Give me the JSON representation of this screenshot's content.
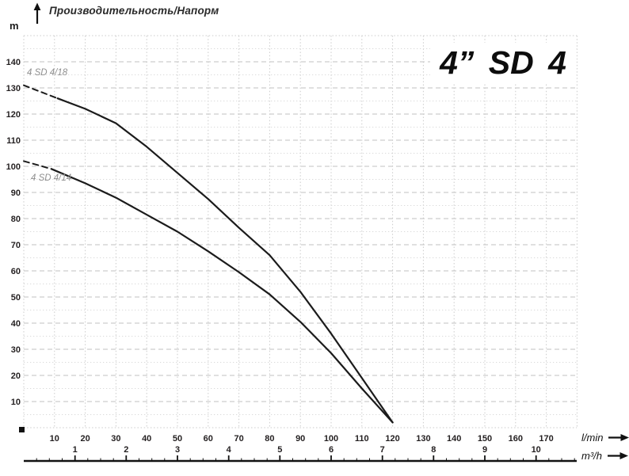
{
  "header": {
    "axis_title": "Производительность/Напорм",
    "y_unit": "m"
  },
  "title": "4” SD 4",
  "axes": {
    "y": {
      "ticks": [
        10,
        20,
        30,
        40,
        50,
        60,
        70,
        80,
        90,
        100,
        110,
        120,
        130,
        140
      ]
    },
    "lmin": {
      "ticks": [
        10,
        20,
        30,
        40,
        50,
        60,
        70,
        80,
        90,
        100,
        110,
        120,
        130,
        140,
        150,
        160,
        170
      ],
      "unit": "l/min"
    },
    "m3h": {
      "ticks": [
        1,
        2,
        3,
        4,
        5,
        6,
        7,
        8,
        9,
        10
      ],
      "unit": "m³/h",
      "minor_step": 0.25
    }
  },
  "chart_data": {
    "type": "line",
    "title": "4” SD 4",
    "ylabel": "Производительность/Напорм (m)",
    "xlabel": "l/min (primary) and m³/h (secondary)",
    "ylim": [
      0,
      150
    ],
    "xlim_lmin": [
      0,
      180
    ],
    "grid": {
      "x_step": 10,
      "y_major_step": 10,
      "y_minor_step": 5,
      "style": "dashed/dotted gray"
    },
    "legend_position": "labels near curve start",
    "series": [
      {
        "name": "4 SD 4/18",
        "dashed_lead": [
          [
            0,
            131
          ],
          [
            11,
            126
          ]
        ],
        "points": [
          [
            11,
            126
          ],
          [
            20,
            122
          ],
          [
            30,
            116.5
          ],
          [
            40,
            107.5
          ],
          [
            50,
            97.5
          ],
          [
            60,
            87.5
          ],
          [
            70,
            76.5
          ],
          [
            80,
            66
          ],
          [
            90,
            52
          ],
          [
            100,
            36
          ],
          [
            110,
            19
          ],
          [
            120,
            2
          ]
        ]
      },
      {
        "name": "4 SD 4/14",
        "dashed_lead": [
          [
            0,
            102
          ],
          [
            9,
            99
          ]
        ],
        "points": [
          [
            9,
            99
          ],
          [
            20,
            93.5
          ],
          [
            30,
            88
          ],
          [
            40,
            81.5
          ],
          [
            50,
            75
          ],
          [
            60,
            67.5
          ],
          [
            70,
            59.5
          ],
          [
            80,
            51
          ],
          [
            90,
            40.5
          ],
          [
            100,
            28.5
          ],
          [
            110,
            15
          ],
          [
            120,
            2
          ]
        ]
      }
    ]
  },
  "colors": {
    "curve": "#1b1b1b",
    "text": "#231f20",
    "grid_major": "#c2c2c2",
    "grid_minor": "#dadada",
    "grid_border": "#cbcbcb",
    "axis": "#111111",
    "curve_label": "#8f8f8f"
  }
}
